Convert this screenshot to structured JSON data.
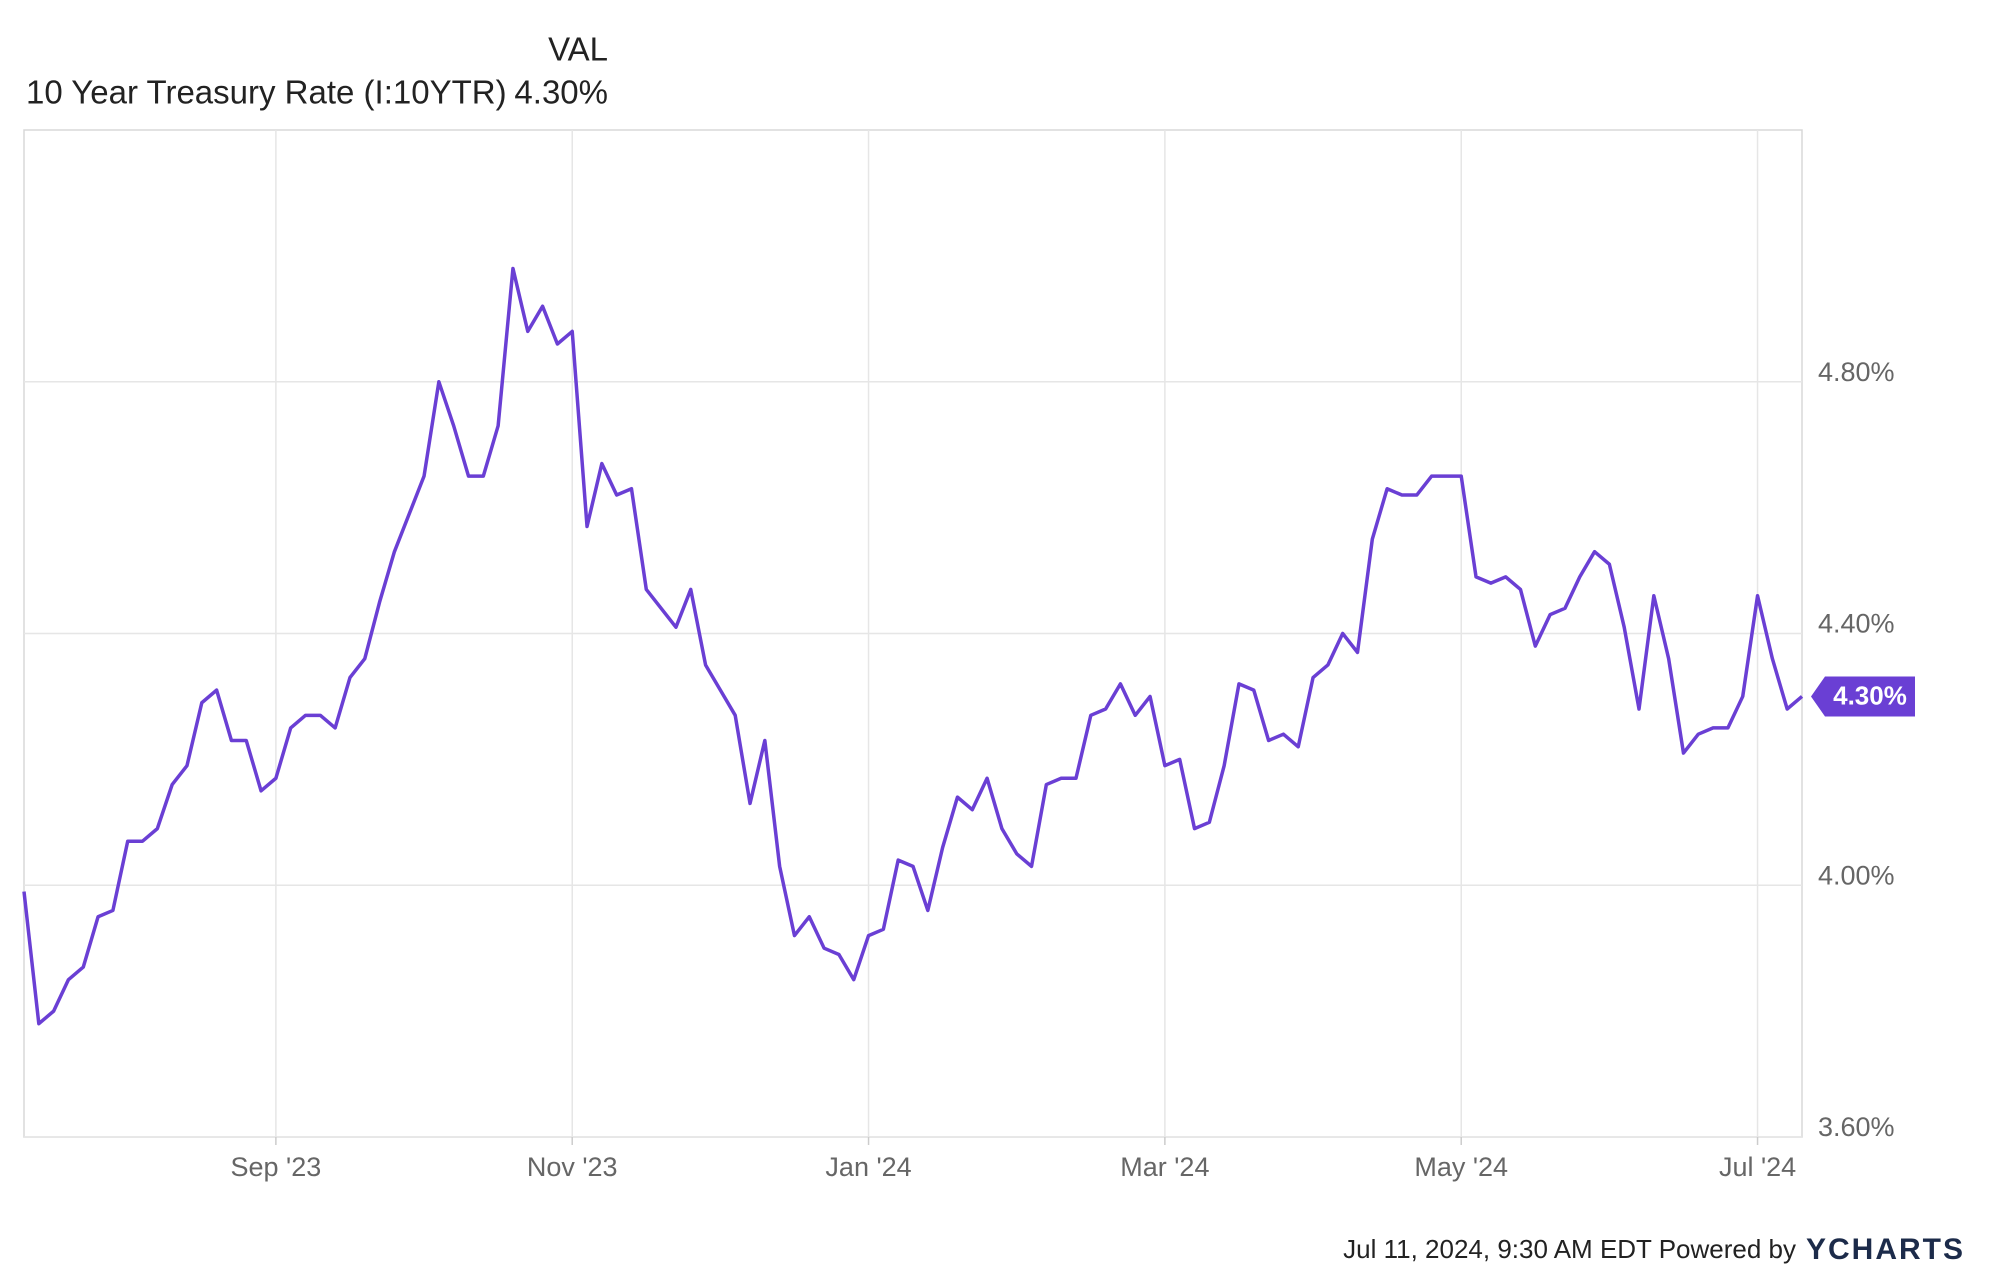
{
  "chart_data": {
    "type": "line",
    "value_column_header": "VAL",
    "categories": [
      null,
      null,
      null,
      null,
      null,
      null,
      null,
      null,
      null,
      null,
      null,
      null,
      null,
      null,
      null,
      null,
      null,
      "Sep '23",
      null,
      null,
      null,
      null,
      null,
      null,
      null,
      null,
      null,
      null,
      null,
      null,
      null,
      null,
      null,
      null,
      null,
      null,
      null,
      "Nov '23",
      null,
      null,
      null,
      null,
      null,
      null,
      null,
      null,
      null,
      null,
      null,
      null,
      null,
      null,
      null,
      null,
      null,
      null,
      null,
      "Jan '24",
      null,
      null,
      null,
      null,
      null,
      null,
      null,
      null,
      null,
      null,
      null,
      null,
      null,
      null,
      null,
      null,
      null,
      null,
      null,
      "Mar '24",
      null,
      null,
      null,
      null,
      null,
      null,
      null,
      null,
      null,
      null,
      null,
      null,
      null,
      null,
      null,
      null,
      null,
      null,
      null,
      "May '24",
      null,
      null,
      null,
      null,
      null,
      null,
      null,
      null,
      null,
      null,
      null,
      null,
      null,
      null,
      null,
      null,
      null,
      null,
      null,
      "Jul '24",
      null,
      null,
      null
    ],
    "series": [
      {
        "name": "10 Year Treasury Rate (I:10YTR)",
        "color": "#6a3fd4",
        "values": [
          3.99,
          3.78,
          3.8,
          3.85,
          3.87,
          3.95,
          3.96,
          4.07,
          4.07,
          4.09,
          4.16,
          4.19,
          4.29,
          4.31,
          4.23,
          4.23,
          4.15,
          4.17,
          4.25,
          4.27,
          4.27,
          4.25,
          4.33,
          4.36,
          4.45,
          4.53,
          4.59,
          4.65,
          4.8,
          4.73,
          4.65,
          4.65,
          4.73,
          4.98,
          4.88,
          4.92,
          4.86,
          4.88,
          4.57,
          4.67,
          4.62,
          4.63,
          4.47,
          4.44,
          4.41,
          4.47,
          4.35,
          4.31,
          4.27,
          4.13,
          4.23,
          4.03,
          3.92,
          3.95,
          3.9,
          3.89,
          3.85,
          3.92,
          3.93,
          4.04,
          4.03,
          3.96,
          4.06,
          4.14,
          4.12,
          4.17,
          4.09,
          4.05,
          4.03,
          4.16,
          4.17,
          4.17,
          4.27,
          4.28,
          4.32,
          4.27,
          4.3,
          4.19,
          4.2,
          4.09,
          4.1,
          4.19,
          4.32,
          4.31,
          4.23,
          4.24,
          4.22,
          4.33,
          4.35,
          4.4,
          4.37,
          4.55,
          4.63,
          4.62,
          4.62,
          4.65,
          4.65,
          4.65,
          4.49,
          4.48,
          4.49,
          4.47,
          4.38,
          4.43,
          4.44,
          4.49,
          4.53,
          4.51,
          4.41,
          4.28,
          4.46,
          4.36,
          4.21,
          4.24,
          4.25,
          4.25,
          4.3,
          4.46,
          4.36,
          4.28,
          4.3
        ],
        "value_labels": [
          null,
          null,
          null,
          null,
          null,
          null,
          null,
          null,
          null,
          null,
          null,
          null,
          null,
          null,
          null,
          null,
          null,
          null,
          null,
          null,
          null,
          null,
          null,
          null,
          null,
          null,
          null,
          null,
          null,
          null,
          null,
          null,
          null,
          null,
          null,
          null,
          null,
          null,
          null,
          null,
          null,
          null,
          null,
          null,
          null,
          null,
          null,
          null,
          null,
          null,
          null,
          null,
          null,
          null,
          null,
          null,
          null,
          null,
          null,
          null,
          null,
          null,
          null,
          null,
          null,
          null,
          null,
          null,
          null,
          null,
          null,
          null,
          null,
          null,
          null,
          null,
          null,
          null,
          null,
          null,
          null,
          null,
          null,
          null,
          null,
          null,
          null,
          null,
          null,
          null,
          null,
          null,
          null,
          null,
          null,
          null,
          null,
          null,
          null,
          null,
          null,
          null,
          null,
          null,
          null,
          null,
          null,
          null,
          null,
          null,
          null,
          null,
          null,
          null,
          null,
          null,
          null,
          null,
          null,
          null,
          "4.30%"
        ]
      }
    ],
    "ylim": [
      3.6,
      5.2
    ],
    "yticks": [
      {
        "value": 3.6,
        "label": "3.60%"
      },
      {
        "value": 4.0,
        "label": "4.00%"
      },
      {
        "value": 4.4,
        "label": "4.40%"
      },
      {
        "value": 4.8,
        "label": "4.80%"
      }
    ],
    "grid": true,
    "footer": "Jul 11, 2024, 9:30 AM EDT Powered by",
    "brand": "YCHARTS"
  }
}
